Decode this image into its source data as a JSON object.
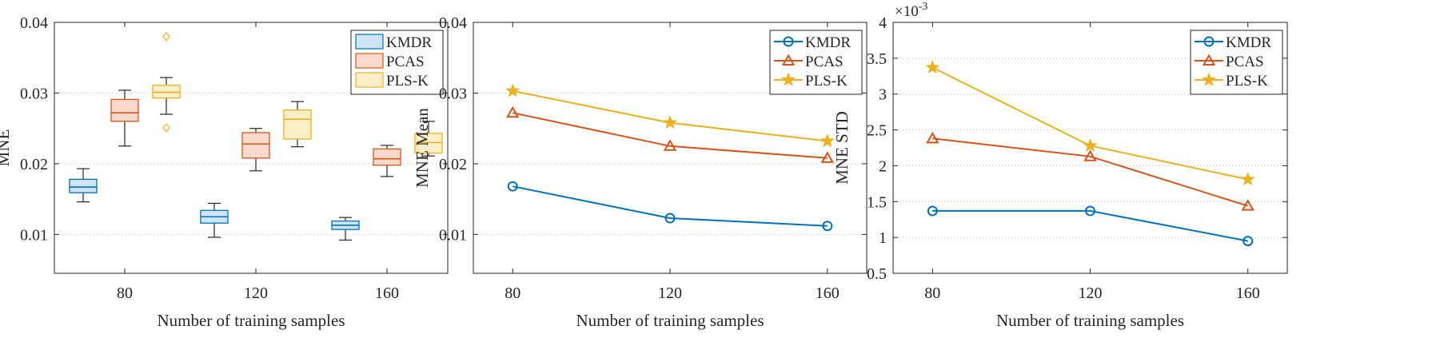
{
  "colors": {
    "kmdr": "#0072BD",
    "pcas": "#D95319",
    "plsk": "#EDB120",
    "kmdr_fill": "#CFE4F4",
    "pcas_fill": "#F9D9CB",
    "plsk_fill": "#FCEFC8",
    "axis": "#262626",
    "grid": "#D9D9D9"
  },
  "chart_data": [
    {
      "type": "box",
      "title": "",
      "xlabel": "Number of training samples",
      "ylabel": "MNE",
      "categories": [
        "80",
        "120",
        "160"
      ],
      "ylim": [
        0.0045,
        0.04
      ],
      "yticks": [
        "0.01",
        "0.02",
        "0.03",
        "0.04"
      ],
      "grid": "horizontal dotted",
      "legend_position": "top-right",
      "series": [
        {
          "name": "KMDR",
          "color_key": "kmdr",
          "boxes": [
            {
              "category": "80",
              "min": 0.0146,
              "q1": 0.0159,
              "median": 0.0167,
              "q3": 0.0178,
              "max": 0.0193,
              "outliers": []
            },
            {
              "category": "120",
              "min": 0.0096,
              "q1": 0.0116,
              "median": 0.0125,
              "q3": 0.0134,
              "max": 0.0144,
              "outliers": []
            },
            {
              "category": "160",
              "min": 0.0092,
              "q1": 0.0107,
              "median": 0.0113,
              "q3": 0.0119,
              "max": 0.0124,
              "outliers": []
            }
          ]
        },
        {
          "name": "PCAS",
          "color_key": "pcas",
          "boxes": [
            {
              "category": "80",
              "min": 0.0225,
              "q1": 0.026,
              "median": 0.0272,
              "q3": 0.0291,
              "max": 0.0304,
              "outliers": []
            },
            {
              "category": "120",
              "min": 0.019,
              "q1": 0.0208,
              "median": 0.0228,
              "q3": 0.0244,
              "max": 0.025,
              "outliers": []
            },
            {
              "category": "160",
              "min": 0.0182,
              "q1": 0.0198,
              "median": 0.0207,
              "q3": 0.0221,
              "max": 0.0226,
              "outliers": []
            }
          ]
        },
        {
          "name": "PLS-K",
          "color_key": "plsk",
          "boxes": [
            {
              "category": "80",
              "min": 0.027,
              "q1": 0.0293,
              "median": 0.0301,
              "q3": 0.0311,
              "max": 0.0322,
              "outliers": [
                0.038,
                0.0251
              ]
            },
            {
              "category": "120",
              "min": 0.0224,
              "q1": 0.0235,
              "median": 0.0263,
              "q3": 0.0276,
              "max": 0.0288,
              "outliers": []
            },
            {
              "category": "160",
              "min": 0.0211,
              "q1": 0.0215,
              "median": 0.023,
              "q3": 0.0243,
              "max": 0.026,
              "outliers": []
            }
          ]
        }
      ]
    },
    {
      "type": "line",
      "title": "",
      "xlabel": "Number of training samples",
      "ylabel": "MNE Mean",
      "x": [
        80,
        120,
        160
      ],
      "xticks": [
        "80",
        "120",
        "160"
      ],
      "ylim": [
        0.0045,
        0.04
      ],
      "yticks": [
        "0.01",
        "0.02",
        "0.03",
        "0.04"
      ],
      "grid": "horizontal dotted",
      "legend_position": "top-right",
      "series": [
        {
          "name": "KMDR",
          "color_key": "kmdr",
          "marker": "circle",
          "values": [
            0.0168,
            0.0123,
            0.0112
          ]
        },
        {
          "name": "PCAS",
          "color_key": "pcas",
          "marker": "triangle",
          "values": [
            0.0272,
            0.0225,
            0.0208
          ]
        },
        {
          "name": "PLS-K",
          "color_key": "plsk",
          "marker": "star",
          "values": [
            0.0303,
            0.0258,
            0.0232
          ]
        }
      ]
    },
    {
      "type": "line",
      "title": "",
      "xlabel": "Number of training samples",
      "ylabel": "MNE STD",
      "scale_label": "×10",
      "scale_exponent": "-3",
      "x": [
        80,
        120,
        160
      ],
      "xticks": [
        "80",
        "120",
        "160"
      ],
      "ylim": [
        0.5,
        4
      ],
      "yticks": [
        "0.5",
        "1",
        "1.5",
        "2",
        "2.5",
        "3",
        "3.5",
        "4"
      ],
      "grid": "horizontal dotted",
      "legend_position": "top-right",
      "series": [
        {
          "name": "KMDR",
          "color_key": "kmdr",
          "marker": "circle",
          "values": [
            1.37,
            1.37,
            0.95
          ]
        },
        {
          "name": "PCAS",
          "color_key": "pcas",
          "marker": "triangle",
          "values": [
            2.38,
            2.13,
            1.44
          ]
        },
        {
          "name": "PLS-K",
          "color_key": "plsk",
          "marker": "star",
          "values": [
            3.37,
            2.28,
            1.81
          ]
        }
      ]
    }
  ]
}
